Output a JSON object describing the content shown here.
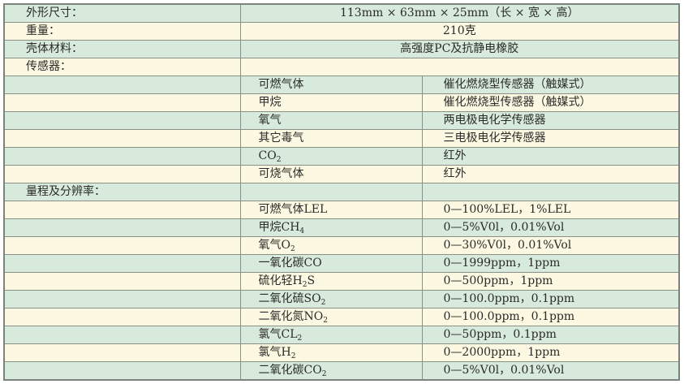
{
  "spec": {
    "dimensions": {
      "label": "外形尺寸：",
      "value": "113mm × 63mm × 25mm（长 × 宽 × 高）"
    },
    "weight": {
      "label": "重量：",
      "value": "210克"
    },
    "housing": {
      "label": "壳体材料：",
      "value": "高强度PC及抗静电橡胶"
    },
    "sensors_label": "传感器：",
    "sensors": [
      {
        "gas": "可燃气体",
        "sub": "",
        "type": "催化燃烧型传感器（触媒式）"
      },
      {
        "gas": "甲烷",
        "sub": "",
        "type": "催化燃烧型传感器（触媒式）"
      },
      {
        "gas": "氧气",
        "sub": "",
        "type": "两电极电化学传感器"
      },
      {
        "gas": "其它毒气",
        "sub": "",
        "type": "三电极电化学传感器"
      },
      {
        "gas": "CO",
        "sub": "2",
        "type": "红外"
      },
      {
        "gas": "可烧气体",
        "sub": "",
        "type": "红外"
      }
    ],
    "range_label": "量程及分辨率：",
    "ranges": [
      {
        "gas": "可燃气体LEL",
        "sub": "",
        "tail": "",
        "range": "0—100%LEL，1%LEL"
      },
      {
        "gas": "甲烷CH",
        "sub": "4",
        "tail": "",
        "range": "0—5%V0l，0.01%Vol"
      },
      {
        "gas": "氧气O",
        "sub": "2",
        "tail": "",
        "range": "0—30%V0l，0.01%Vol"
      },
      {
        "gas": "一氧化碳CO",
        "sub": "",
        "tail": "",
        "range": "0—1999ppm，1ppm"
      },
      {
        "gas": "硫化轻H",
        "sub": "2",
        "tail": "S",
        "range": "0—500ppm，1ppm"
      },
      {
        "gas": "二氧化硫SO",
        "sub": "2",
        "tail": "",
        "range": "0—100.0ppm，0.1ppm"
      },
      {
        "gas": "二氧化氮NO",
        "sub": "2",
        "tail": "",
        "range": "0—100.0ppm，0.1ppm"
      },
      {
        "gas": "氯气CL",
        "sub": "2",
        "tail": "",
        "range": "0—50ppm，0.1ppm"
      },
      {
        "gas": "氯气H",
        "sub": "2",
        "tail": "",
        "range": "0—2000ppm，1ppm"
      },
      {
        "gas": "二氧化碳CO",
        "sub": "2",
        "tail": "",
        "range": "0—5%V0l，0.01%Vol"
      }
    ]
  },
  "colors": {
    "row_green": "#d7eadb",
    "row_cream": "#fdf8e1",
    "border": "#8a8f8a"
  }
}
